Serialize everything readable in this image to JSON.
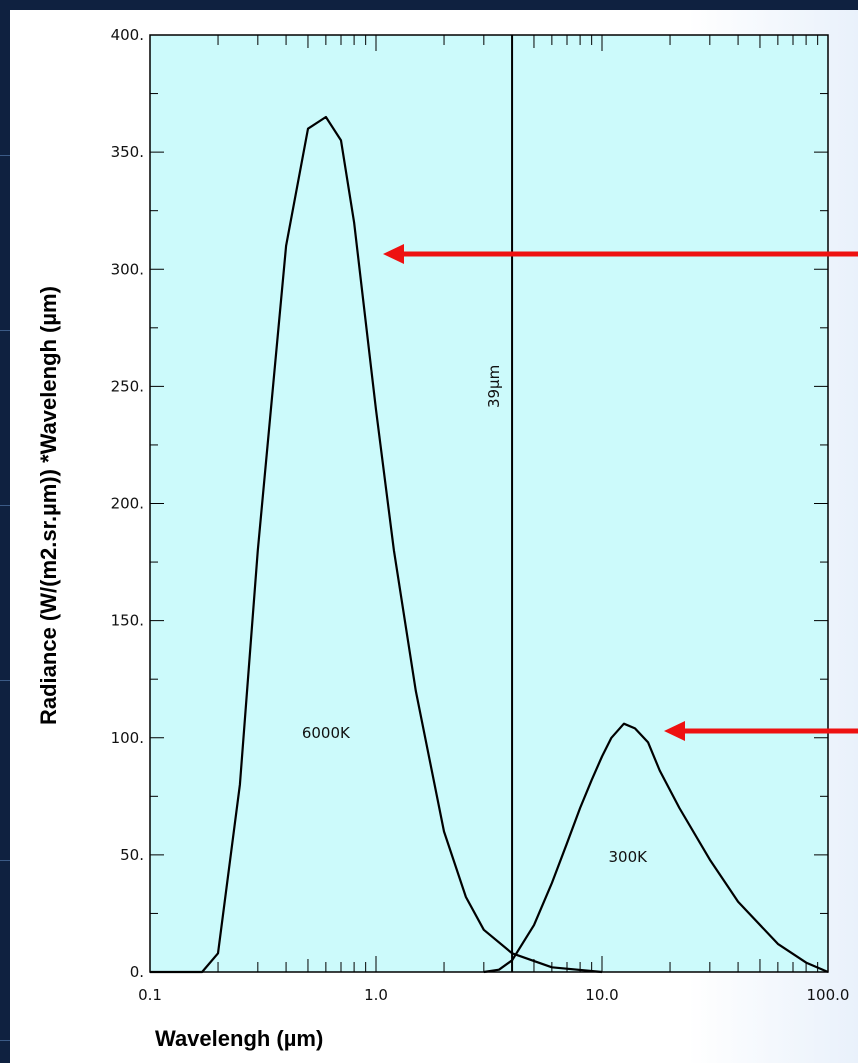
{
  "chart_data": {
    "type": "line",
    "xlabel": "Wavelengh (µm)",
    "ylabel": "Radiance (W/(m2.sr.µm)) *Wavelengh (µm)",
    "xscale": "log",
    "xlim": [
      0.1,
      100.0
    ],
    "ylim": [
      0,
      400
    ],
    "x_tick_labels": [
      "0.1",
      "1.0",
      "10.0",
      "100.0"
    ],
    "x_ticks": [
      0.1,
      1.0,
      10.0,
      100.0
    ],
    "y_tick_labels": [
      "0.",
      "50.",
      "100.",
      "150.",
      "200.",
      "250.",
      "300.",
      "350.",
      "400."
    ],
    "y_ticks": [
      0,
      50,
      100,
      150,
      200,
      250,
      300,
      350,
      400
    ],
    "grid": false,
    "background_color": "#ccfafb",
    "curve_color": "#000000",
    "arrow_color": "#ee1111",
    "series": [
      {
        "name": "6000K",
        "x": [
          0.1,
          0.17,
          0.2,
          0.25,
          0.3,
          0.4,
          0.5,
          0.6,
          0.7,
          0.8,
          1.0,
          1.2,
          1.5,
          2.0,
          2.5,
          3.0,
          4.0,
          6.0,
          10.0
        ],
        "y": [
          0,
          0,
          8,
          80,
          180,
          310,
          360,
          365,
          355,
          320,
          240,
          180,
          120,
          60,
          32,
          18,
          8,
          2,
          0
        ]
      },
      {
        "name": "300K",
        "x": [
          3.0,
          3.5,
          4.0,
          5.0,
          6.0,
          7.0,
          8.0,
          9.0,
          10.0,
          11.0,
          12.5,
          14.0,
          16.0,
          18.0,
          22.0,
          30.0,
          40.0,
          60.0,
          80.0,
          100.0
        ],
        "y": [
          0,
          1,
          5,
          20,
          38,
          55,
          70,
          82,
          92,
          100,
          106,
          104,
          98,
          86,
          70,
          48,
          30,
          12,
          4,
          0
        ]
      }
    ],
    "annotations": [
      {
        "text": "6000K",
        "x": 0.6,
        "y": 100
      },
      {
        "text": "300K",
        "x": 13.0,
        "y": 47
      },
      {
        "text": "39µm",
        "x": 3.3,
        "y": 250
      }
    ],
    "vertical_line_x": 4.0
  }
}
